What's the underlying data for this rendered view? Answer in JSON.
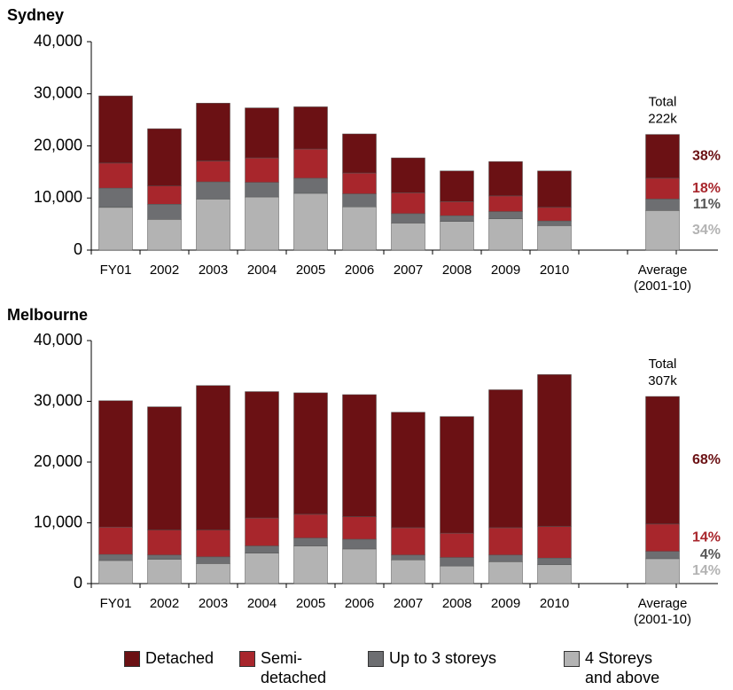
{
  "chart_data": [
    {
      "type": "bar",
      "stacked": true,
      "title": "Sydney",
      "categories": [
        "FY01",
        "2002",
        "2003",
        "2004",
        "2005",
        "2006",
        "2007",
        "2008",
        "2009",
        "2010",
        null,
        "Average (2001-10)"
      ],
      "series": [
        {
          "name": "Detached",
          "color": "#6b1114",
          "values": [
            12900,
            11000,
            11100,
            9600,
            8100,
            7500,
            6700,
            5900,
            6600,
            7000,
            null,
            8400
          ]
        },
        {
          "name": "Semi-detached",
          "color": "#a8262c",
          "values": [
            4800,
            3500,
            4000,
            4700,
            5600,
            4000,
            4000,
            2700,
            3000,
            2600,
            null,
            4000
          ]
        },
        {
          "name": "Up to 3 storeys",
          "color": "#6d6e71",
          "values": [
            3700,
            2900,
            3300,
            2800,
            2900,
            2500,
            1800,
            1100,
            1400,
            900,
            null,
            2200
          ]
        },
        {
          "name": "4 Storeys and above",
          "color": "#b3b3b3",
          "values": [
            8200,
            5900,
            9800,
            10200,
            10900,
            8300,
            5200,
            5500,
            6000,
            4700,
            null,
            7600
          ]
        }
      ],
      "total_label": "Total 222k",
      "percent_labels": [
        "38%",
        "18%",
        "11%",
        "34%"
      ],
      "percent_colors": [
        "#6b1114",
        "#a8262c",
        "#555555",
        "#b3b3b3"
      ],
      "ylim": [
        0,
        40000
      ],
      "yticks": [
        0,
        {
          "value": 10000,
          "label": "10,000"
        },
        {
          "value": 20000,
          "label": "20,000"
        },
        {
          "value": 30000,
          "label": "30,000"
        },
        {
          "value": 40000,
          "label": "40,000"
        }
      ]
    },
    {
      "type": "bar",
      "stacked": true,
      "title": "Melbourne",
      "categories": [
        "FY01",
        "2002",
        "2003",
        "2004",
        "2005",
        "2006",
        "2007",
        "2008",
        "2009",
        "2010",
        null,
        "Average (2001-10)"
      ],
      "series": [
        {
          "color": "#6b1114",
          "values": [
            20800,
            20300,
            23800,
            20800,
            20000,
            20100,
            19000,
            19200,
            22700,
            25000,
            null,
            21000
          ]
        },
        {
          "color": "#a8262c",
          "values": [
            4500,
            4100,
            4400,
            4600,
            3900,
            3700,
            4500,
            4000,
            4500,
            5200,
            null,
            4500
          ]
        },
        {
          "color": "#6d6e71",
          "values": [
            1000,
            700,
            1100,
            1200,
            1300,
            1600,
            800,
            1400,
            1100,
            1100,
            null,
            1200
          ]
        },
        {
          "color": "#b3b3b3",
          "values": [
            3800,
            4000,
            3300,
            5000,
            6200,
            5700,
            3900,
            2900,
            3600,
            3100,
            null,
            4100
          ]
        }
      ],
      "total_label": "Total 307k",
      "percent_labels": [
        "68%",
        "14%",
        "4%",
        "14%"
      ],
      "percent_colors": [
        "#6b1114",
        "#a8262c",
        "#555555",
        "#b3b3b3"
      ],
      "ylim": [
        0,
        40000
      ],
      "yticks": [
        0,
        {
          "value": 10000,
          "label": "10,000"
        },
        {
          "value": 20000,
          "label": "20,000"
        },
        {
          "value": 30000,
          "label": "30,000"
        },
        {
          "value": 40000,
          "label": "40,000"
        }
      ]
    }
  ]
}
